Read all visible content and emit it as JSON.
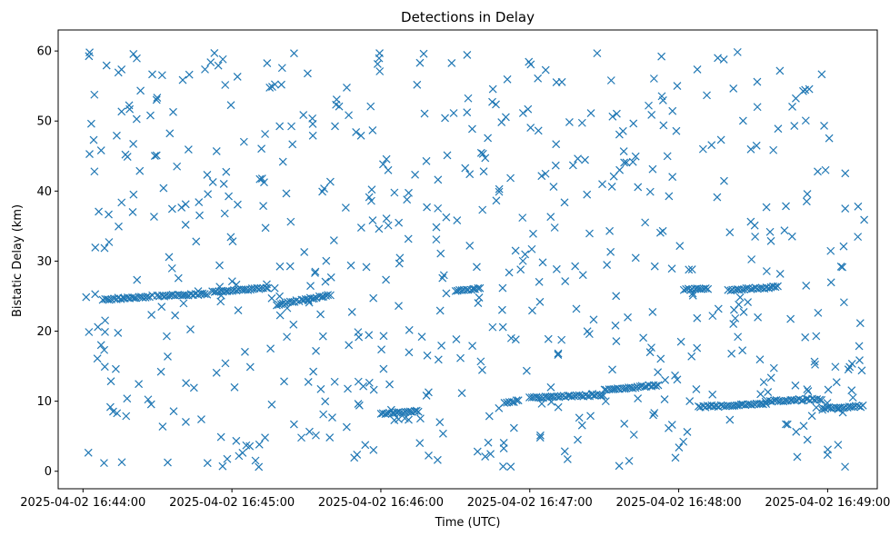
{
  "chart_data": {
    "type": "scatter",
    "title": "Detections in Delay",
    "xlabel": "Time (UTC)",
    "ylabel": "Bistatic Delay (km)",
    "marker": "x",
    "color": "#1f77b4",
    "grid": false,
    "x_axis": {
      "unit": "seconds after 2025-04-02 16:44:00 UTC",
      "range": [
        -10,
        320
      ],
      "ticks": [
        {
          "value": 0,
          "label": "2025-04-02 16:44:00"
        },
        {
          "value": 60,
          "label": "2025-04-02 16:45:00"
        },
        {
          "value": 120,
          "label": "2025-04-02 16:46:00"
        },
        {
          "value": 180,
          "label": "2025-04-02 16:47:00"
        },
        {
          "value": 240,
          "label": "2025-04-02 16:48:00"
        },
        {
          "value": 300,
          "label": "2025-04-02 16:49:00"
        }
      ]
    },
    "y_axis": {
      "range": [
        -2.5,
        63
      ],
      "ticks": [
        0,
        10,
        20,
        30,
        40,
        50,
        60
      ]
    },
    "tracks": [
      {
        "x_range": [
          8,
          28
        ],
        "y_range": [
          24.5,
          25.0
        ]
      },
      {
        "x_range": [
          30,
          50
        ],
        "y_range": [
          25.0,
          25.3
        ]
      },
      {
        "x_range": [
          52,
          75
        ],
        "y_range": [
          25.6,
          26.2
        ]
      },
      {
        "x_range": [
          78,
          100
        ],
        "y_range": [
          23.8,
          25.2
        ]
      },
      {
        "x_range": [
          150,
          160
        ],
        "y_range": [
          25.8,
          26.1
        ]
      },
      {
        "x_range": [
          120,
          136
        ],
        "y_range": [
          8.2,
          8.6
        ]
      },
      {
        "x_range": [
          170,
          176
        ],
        "y_range": [
          9.8,
          10.1
        ]
      },
      {
        "x_range": [
          180,
          210
        ],
        "y_range": [
          10.5,
          10.9
        ]
      },
      {
        "x_range": [
          210,
          232
        ],
        "y_range": [
          11.6,
          12.3
        ]
      },
      {
        "x_range": [
          248,
          275
        ],
        "y_range": [
          9.2,
          9.6
        ]
      },
      {
        "x_range": [
          275,
          298
        ],
        "y_range": [
          10.0,
          10.3
        ]
      },
      {
        "x_range": [
          298,
          315
        ],
        "y_range": [
          9.0,
          9.3
        ]
      },
      {
        "x_range": [
          242,
          252
        ],
        "y_range": [
          25.9,
          26.1
        ]
      },
      {
        "x_range": [
          260,
          280
        ],
        "y_range": [
          25.9,
          26.3
        ]
      }
    ],
    "clutter_point_count": 620,
    "random_seed": 7
  }
}
